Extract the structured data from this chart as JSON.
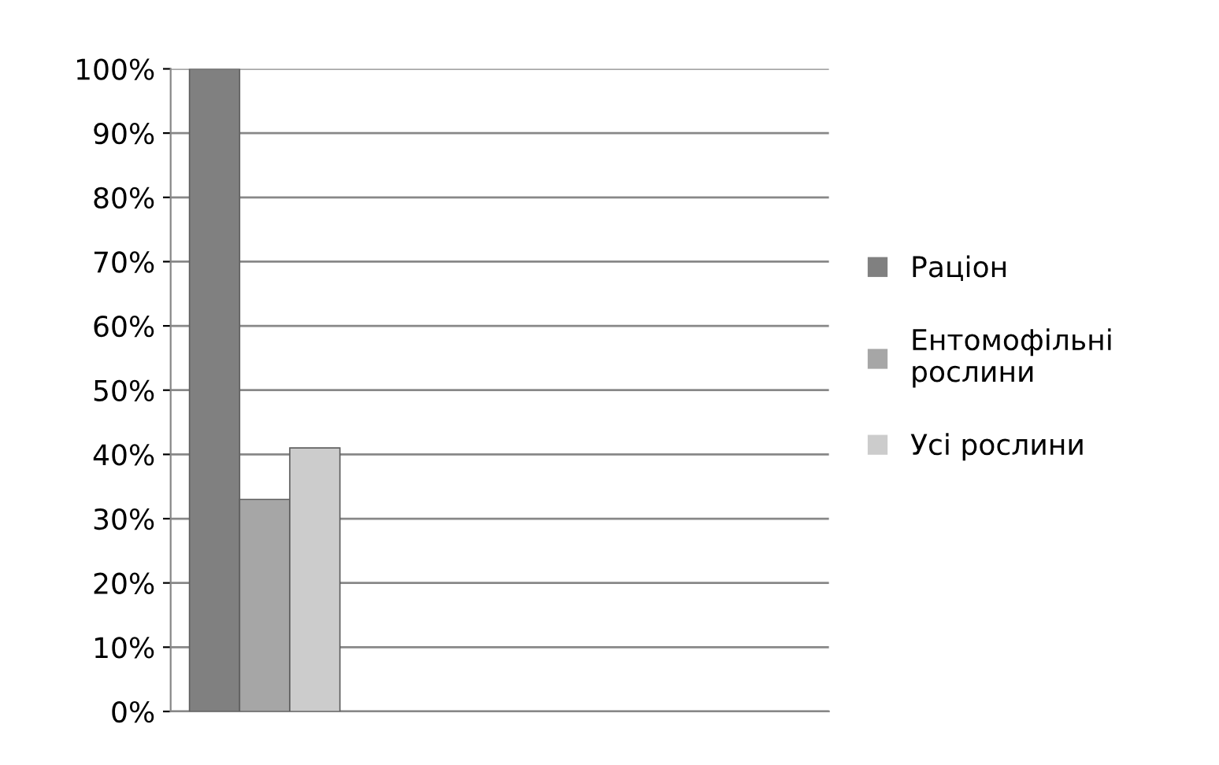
{
  "chart_data": {
    "type": "bar",
    "categories": [
      null
    ],
    "series": [
      {
        "name": "Раціон",
        "color": "#808080",
        "values": [
          100
        ]
      },
      {
        "name": "Ентомофільні\nрослини",
        "color": "#a6a6a6",
        "values": [
          33
        ]
      },
      {
        "name": "Усі рослини",
        "color": "#cccccc",
        "values": [
          41
        ]
      }
    ],
    "ylim": [
      0,
      100
    ],
    "yticks": [
      {
        "value": 0,
        "label": "0%"
      },
      {
        "value": 10,
        "label": "10%"
      },
      {
        "value": 20,
        "label": "20%"
      },
      {
        "value": 30,
        "label": "30%"
      },
      {
        "value": 40,
        "label": "40%"
      },
      {
        "value": 50,
        "label": "50%"
      },
      {
        "value": 60,
        "label": "60%"
      },
      {
        "value": 70,
        "label": "70%"
      },
      {
        "value": 80,
        "label": "80%"
      },
      {
        "value": 90,
        "label": "90%"
      },
      {
        "value": 100,
        "label": "100%"
      }
    ],
    "grid": "y",
    "legend": "right"
  }
}
